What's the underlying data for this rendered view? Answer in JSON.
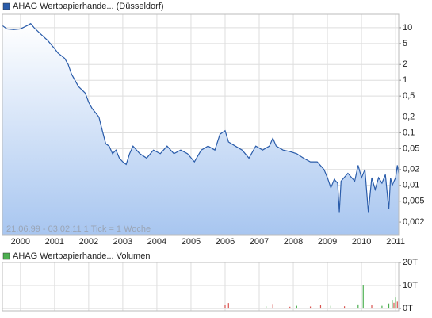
{
  "chart_data": [
    {
      "type": "area",
      "title": "AHAG Wertpapierhande... (Düsseldorf)",
      "annotation": "21.06.99 - 03.02.11   1 Tick = 1 Woche",
      "color": "#2a5caa",
      "log_scale": true,
      "grid": true,
      "x": [
        1999.47,
        1999.6,
        1999.8,
        2000.0,
        2000.2,
        2000.3,
        2000.4,
        2000.6,
        2000.8,
        2001.0,
        2001.1,
        2001.3,
        2001.4,
        2001.5,
        2001.7,
        2001.9,
        2002.0,
        2002.1,
        2002.3,
        2002.4,
        2002.5,
        2002.6,
        2002.7,
        2002.8,
        2002.9,
        2003.0,
        2003.1,
        2003.2,
        2003.3,
        2003.5,
        2003.7,
        2003.9,
        2004.1,
        2004.3,
        2004.5,
        2004.7,
        2004.9,
        2005.1,
        2005.3,
        2005.5,
        2005.7,
        2005.85,
        2006.0,
        2006.1,
        2006.3,
        2006.5,
        2006.7,
        2006.9,
        2007.1,
        2007.3,
        2007.4,
        2007.5,
        2007.7,
        2007.9,
        2008.1,
        2008.3,
        2008.5,
        2008.7,
        2008.9,
        2009.0,
        2009.1,
        2009.2,
        2009.3,
        2009.35,
        2009.4,
        2009.6,
        2009.8,
        2009.9,
        2010.0,
        2010.1,
        2010.2,
        2010.3,
        2010.4,
        2010.5,
        2010.6,
        2010.7,
        2010.8,
        2010.85,
        2010.9,
        2011.0,
        2011.05,
        2011.09
      ],
      "values": [
        11,
        9.5,
        9.2,
        9.5,
        11,
        12,
        10,
        7.5,
        5.7,
        4,
        3.3,
        2.6,
        2,
        1.3,
        0.76,
        0.57,
        0.38,
        0.29,
        0.2,
        0.11,
        0.062,
        0.056,
        0.04,
        0.047,
        0.033,
        0.028,
        0.025,
        0.04,
        0.056,
        0.04,
        0.033,
        0.047,
        0.04,
        0.056,
        0.04,
        0.047,
        0.04,
        0.028,
        0.047,
        0.056,
        0.047,
        0.094,
        0.11,
        0.067,
        0.056,
        0.047,
        0.033,
        0.056,
        0.047,
        0.056,
        0.079,
        0.056,
        0.047,
        0.044,
        0.04,
        0.033,
        0.028,
        0.028,
        0.02,
        0.014,
        0.009,
        0.013,
        0.011,
        0.0031,
        0.012,
        0.017,
        0.012,
        0.024,
        0.014,
        0.02,
        0.0031,
        0.014,
        0.0083,
        0.014,
        0.011,
        0.016,
        0.0035,
        0.014,
        0.01,
        0.014,
        0.024,
        0.017
      ],
      "xlim": [
        1999.47,
        2011.09
      ],
      "ylim": [
        0.00115,
        18
      ],
      "xticks": [
        2000,
        2001,
        2002,
        2003,
        2004,
        2005,
        2006,
        2007,
        2008,
        2009,
        2010,
        2011
      ],
      "yticks": [
        10,
        5,
        2,
        1,
        {
          "value": 0.5,
          "label": "0,5"
        },
        {
          "value": 0.2,
          "label": "0,2"
        },
        {
          "value": 0.1,
          "label": "0,1"
        },
        {
          "value": 0.05,
          "label": "0,05"
        },
        {
          "value": 0.02,
          "label": "0,02"
        },
        {
          "value": 0.01,
          "label": "0,01"
        },
        {
          "value": 0.005,
          "label": "0,005"
        },
        {
          "value": 0.002,
          "label": "0,002"
        }
      ]
    },
    {
      "type": "bar",
      "title": "AHAG Wertpapierhande... Volumen",
      "color": "#4caf50",
      "grid": true,
      "x": [
        2006.0,
        2006.1,
        2007.2,
        2007.4,
        2007.9,
        2008.1,
        2008.5,
        2008.8,
        2009.1,
        2009.5,
        2009.9,
        2010.05,
        2010.3,
        2010.6,
        2010.8,
        2010.9,
        2010.95,
        2011.0,
        2011.05
      ],
      "values": [
        1500,
        2400,
        1000,
        2000,
        800,
        1200,
        900,
        1500,
        1200,
        1000,
        1800,
        10000,
        1400,
        1200,
        2200,
        3800,
        2500,
        4800,
        3000
      ],
      "colors": [
        "#d9534f",
        "#d9534f",
        "#4caf50",
        "#d9534f",
        "#d9534f",
        "#4caf50",
        "#d9534f",
        "#d9534f",
        "#4caf50",
        "#d9534f",
        "#4caf50",
        "#4caf50",
        "#d9534f",
        "#4caf50",
        "#4caf50",
        "#4caf50",
        "#d9534f",
        "#4caf50",
        "#d9534f"
      ],
      "xlim": [
        1999.47,
        2011.09
      ],
      "ylim": [
        -1000,
        20000
      ],
      "xticks": [
        2000,
        2001,
        2002,
        2003,
        2004,
        2005,
        2006,
        2007,
        2008,
        2009,
        2010,
        2011
      ],
      "yticks": [
        {
          "value": 20000,
          "label": "20T"
        },
        {
          "value": 10000,
          "label": "10T"
        },
        {
          "value": 0,
          "label": "0T"
        }
      ]
    }
  ]
}
